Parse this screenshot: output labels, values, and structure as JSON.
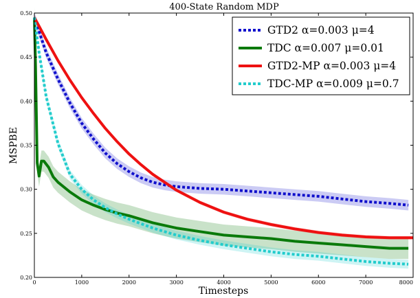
{
  "chart_data": {
    "type": "line",
    "title": "400-State Random MDP",
    "xlabel": "Timesteps",
    "ylabel": "MSPBE",
    "xlim": [
      0,
      8000
    ],
    "ylim": [
      0.2,
      0.5
    ],
    "xticks": [
      0,
      1000,
      2000,
      3000,
      4000,
      5000,
      6000,
      7000,
      8000
    ],
    "xtick_labels": [
      "0",
      "1000",
      "2000",
      "3000",
      "4000",
      "5000",
      "6000",
      "7000",
      "8000"
    ],
    "yticks": [
      0.2,
      0.25,
      0.3,
      0.35,
      0.4,
      0.45,
      0.5
    ],
    "ytick_labels": [
      "0.20",
      "0.25",
      "0.30",
      "0.35",
      "0.40",
      "0.45",
      "0.50"
    ],
    "grid": false,
    "legend_position": "top-right",
    "series": [
      {
        "name": "GTD2 α=0.003 μ=4",
        "color": "#1010cc",
        "style": "dotted",
        "x": [
          0,
          250,
          500,
          750,
          1000,
          1250,
          1500,
          1750,
          2000,
          2250,
          2500,
          2750,
          3000,
          3500,
          4000,
          4500,
          5000,
          5500,
          6000,
          6500,
          7000,
          7500,
          7900
        ],
        "y": [
          0.495,
          0.455,
          0.425,
          0.398,
          0.375,
          0.357,
          0.341,
          0.329,
          0.32,
          0.313,
          0.308,
          0.305,
          0.303,
          0.301,
          0.3,
          0.298,
          0.296,
          0.294,
          0.292,
          0.289,
          0.286,
          0.284,
          0.282
        ],
        "band": 0.006
      },
      {
        "name": "TDC α=0.007 μ=0.01",
        "color": "#0a7a0a",
        "style": "solid",
        "x": [
          0,
          25,
          60,
          100,
          150,
          200,
          300,
          400,
          500,
          750,
          1000,
          1250,
          1500,
          1750,
          2000,
          2250,
          2500,
          2750,
          3000,
          3500,
          4000,
          4500,
          5000,
          5500,
          6000,
          6500,
          7000,
          7500,
          7900
        ],
        "y": [
          0.495,
          0.44,
          0.33,
          0.315,
          0.332,
          0.332,
          0.325,
          0.314,
          0.308,
          0.297,
          0.288,
          0.282,
          0.277,
          0.273,
          0.27,
          0.266,
          0.262,
          0.259,
          0.256,
          0.252,
          0.248,
          0.246,
          0.244,
          0.241,
          0.239,
          0.237,
          0.235,
          0.233,
          0.233
        ],
        "band": 0.012
      },
      {
        "name": "GTD2-MP α=0.003 μ=4",
        "color": "#ee1111",
        "style": "solid",
        "x": [
          0,
          250,
          500,
          750,
          1000,
          1250,
          1500,
          1750,
          2000,
          2250,
          2500,
          2750,
          3000,
          3500,
          4000,
          4500,
          5000,
          5500,
          6000,
          6500,
          7000,
          7500,
          8000
        ],
        "y": [
          0.495,
          0.47,
          0.446,
          0.424,
          0.404,
          0.386,
          0.369,
          0.354,
          0.34,
          0.328,
          0.317,
          0.308,
          0.299,
          0.285,
          0.274,
          0.266,
          0.26,
          0.255,
          0.251,
          0.248,
          0.246,
          0.245,
          0.245
        ],
        "band": 0.002
      },
      {
        "name": "TDC-MP α=0.009 μ=0.7",
        "color": "#22cccc",
        "style": "dotted",
        "x": [
          0,
          100,
          250,
          500,
          750,
          1000,
          1250,
          1500,
          1750,
          2000,
          2250,
          2500,
          2750,
          3000,
          3500,
          4000,
          4500,
          5000,
          5500,
          6000,
          6500,
          7000,
          7500,
          7900
        ],
        "y": [
          0.495,
          0.455,
          0.405,
          0.352,
          0.317,
          0.3,
          0.288,
          0.279,
          0.272,
          0.266,
          0.261,
          0.256,
          0.252,
          0.248,
          0.242,
          0.237,
          0.233,
          0.229,
          0.226,
          0.224,
          0.221,
          0.218,
          0.216,
          0.215
        ],
        "band": 0.005
      }
    ]
  }
}
